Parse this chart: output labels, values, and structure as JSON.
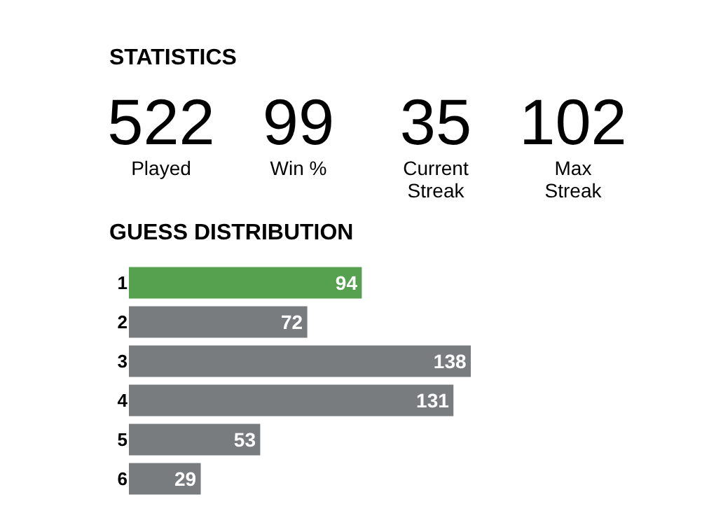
{
  "chart_data": [
    {
      "type": "other",
      "title": "STATISTICS",
      "categories": [
        "Played",
        "Win %",
        "Current Streak",
        "Max Streak"
      ],
      "values": [
        522,
        99,
        35,
        102
      ],
      "data_labels": true
    },
    {
      "type": "bar",
      "title": "GUESS DISTRIBUTION",
      "orientation": "horizontal",
      "categories": [
        "1",
        "2",
        "3",
        "4",
        "5",
        "6"
      ],
      "values": [
        94,
        72,
        138,
        131,
        53,
        29
      ],
      "colors": [
        "#55a14f",
        "#787c7e",
        "#787c7e",
        "#787c7e",
        "#787c7e",
        "#787c7e"
      ],
      "data_labels": true,
      "tick_labels": "y"
    }
  ]
}
